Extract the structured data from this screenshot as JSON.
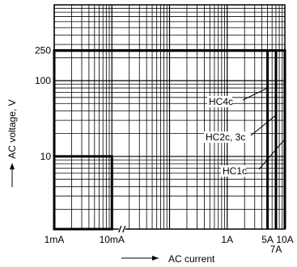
{
  "chart_data": {
    "type": "line",
    "xscale": "log",
    "yscale": "log",
    "xlim": [
      0.001,
      10
    ],
    "ylim": [
      1.1,
      1000
    ],
    "grid": true,
    "xlabel": "AC current",
    "ylabel": "AC voltage, V",
    "x_ticks": [
      {
        "value": 0.001,
        "label": "1mA"
      },
      {
        "value": 0.01,
        "label": "10mA"
      },
      {
        "value": 1,
        "label": "1A"
      },
      {
        "value": 5,
        "label": "5A"
      },
      {
        "value": 10,
        "label": "10A"
      }
    ],
    "x_ticks_low": [
      {
        "value": 7,
        "label": "7A"
      }
    ],
    "y_ticks": [
      {
        "value": 250,
        "label": "250"
      },
      {
        "value": 100,
        "label": "100"
      },
      {
        "value": 10,
        "label": "10"
      }
    ],
    "series": [
      {
        "name": "HC4c",
        "x": [
          0.001,
          0.01,
          0.01,
          0.001,
          0.001,
          5,
          5
        ],
        "y": [
          10,
          10,
          1.1,
          1.1,
          250,
          250,
          1.1
        ]
      },
      {
        "name": "HC2c, 3c",
        "x": [
          0.001,
          7,
          7
        ],
        "y": [
          250,
          250,
          1.1
        ]
      },
      {
        "name": "HC1c",
        "x": [
          0.001,
          10,
          10
        ],
        "y": [
          250,
          250,
          1.1
        ]
      }
    ],
    "break_symbol": "//"
  }
}
